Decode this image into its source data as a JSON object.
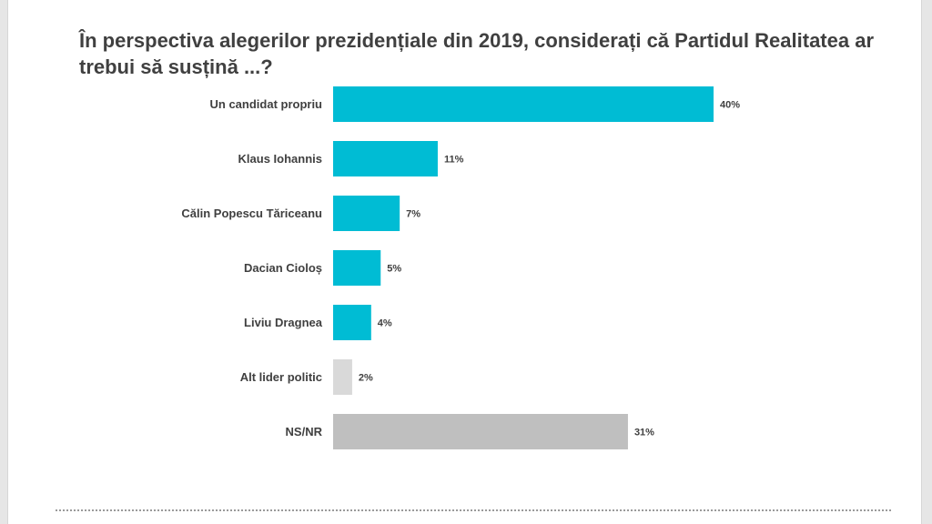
{
  "chart_data": {
    "type": "bar",
    "orientation": "horizontal",
    "title": "În perspectiva alegerilor prezidențiale din 2019, considerați că Partidul Realitatea ar trebui să susțină ...?",
    "categories": [
      "Un candidat propriu",
      "Klaus Iohannis",
      "Călin Popescu Tăriceanu",
      "Dacian Cioloș",
      "Liviu Dragnea",
      "Alt lider politic",
      "NS/NR"
    ],
    "values": [
      40,
      11,
      7,
      5,
      4,
      2,
      31
    ],
    "data_labels": [
      "40%",
      "11%",
      "7%",
      "5%",
      "4%",
      "2%",
      "31%"
    ],
    "bar_colors": [
      "#00bcd4",
      "#00bcd4",
      "#00bcd4",
      "#00bcd4",
      "#00bcd4",
      "#d9d9d9",
      "#bfbfbf"
    ],
    "unit": "%",
    "xlim": [
      0,
      40
    ],
    "grid": false,
    "legend": "none"
  },
  "colors": {
    "accent": "#00bcd4",
    "other": "#d9d9d9",
    "nsnr": "#bfbfbf",
    "text": "#404040"
  }
}
